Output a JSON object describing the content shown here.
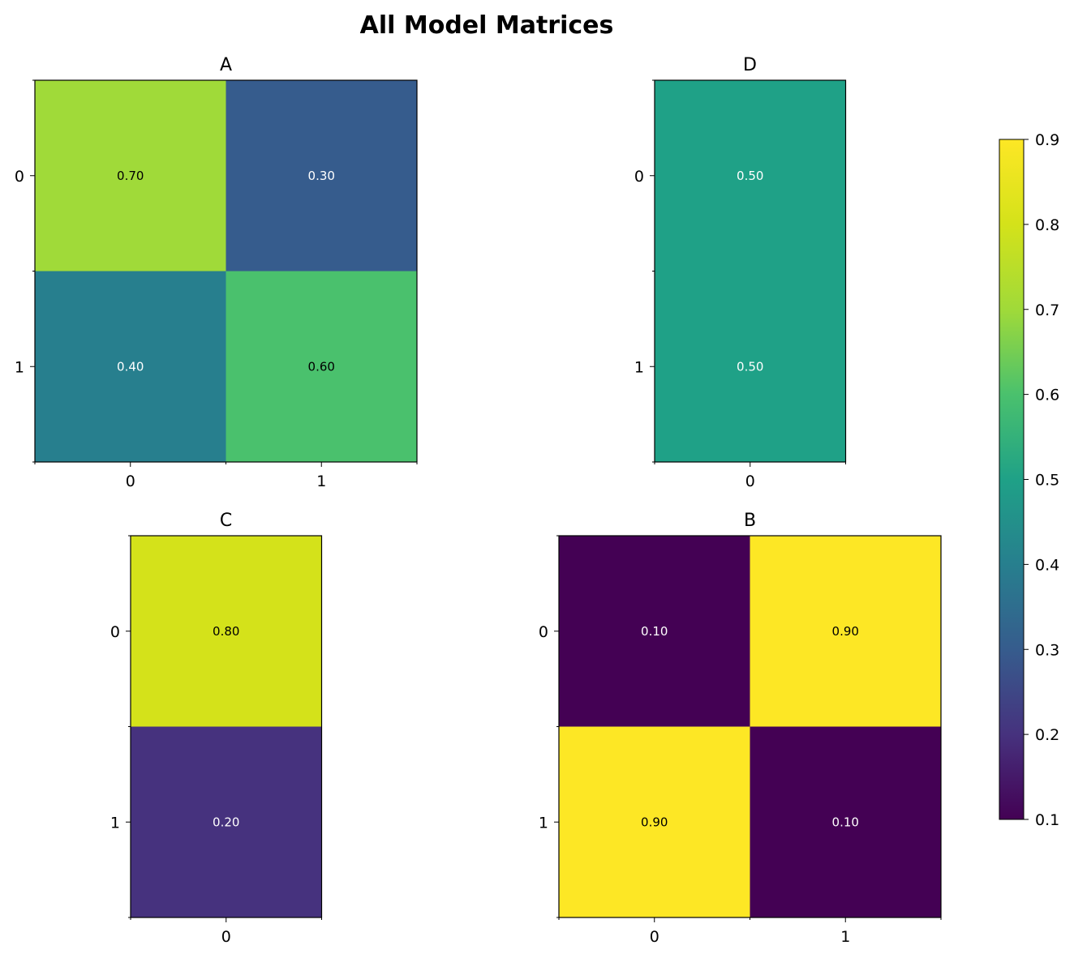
{
  "figure_title": "All Model Matrices",
  "chart_data": [
    {
      "type": "heatmap",
      "title": "A",
      "row_labels": [
        "0",
        "1"
      ],
      "col_labels": [
        "0",
        "1"
      ],
      "values": [
        [
          0.7,
          0.3
        ],
        [
          0.4,
          0.6
        ]
      ],
      "cell_labels": [
        [
          "0.70",
          "0.30"
        ],
        [
          "0.40",
          "0.60"
        ]
      ],
      "vmin": 0.1,
      "vmax": 0.9
    },
    {
      "type": "heatmap",
      "title": "D",
      "row_labels": [
        "0",
        "1"
      ],
      "col_labels": [
        "0"
      ],
      "values": [
        [
          0.5
        ],
        [
          0.5
        ]
      ],
      "cell_labels": [
        [
          "0.50"
        ],
        [
          "0.50"
        ]
      ],
      "vmin": 0.1,
      "vmax": 0.9
    },
    {
      "type": "heatmap",
      "title": "C",
      "row_labels": [
        "0",
        "1"
      ],
      "col_labels": [
        "0"
      ],
      "values": [
        [
          0.8
        ],
        [
          0.2
        ]
      ],
      "cell_labels": [
        [
          "0.80"
        ],
        [
          "0.20"
        ]
      ],
      "vmin": 0.1,
      "vmax": 0.9
    },
    {
      "type": "heatmap",
      "title": "B",
      "row_labels": [
        "0",
        "1"
      ],
      "col_labels": [
        "0",
        "1"
      ],
      "values": [
        [
          0.1,
          0.9
        ],
        [
          0.9,
          0.1
        ]
      ],
      "cell_labels": [
        [
          "0.10",
          "0.90"
        ],
        [
          "0.90",
          "0.10"
        ]
      ],
      "vmin": 0.1,
      "vmax": 0.9
    }
  ],
  "colorbar": {
    "colormap": "viridis",
    "min": 0.1,
    "max": 0.9,
    "tick_values": [
      0.1,
      0.2,
      0.3,
      0.4,
      0.5,
      0.6,
      0.7,
      0.8,
      0.9
    ],
    "tick_labels": [
      "0.1",
      "0.2",
      "0.3",
      "0.4",
      "0.5",
      "0.6",
      "0.7",
      "0.8",
      "0.9"
    ]
  }
}
